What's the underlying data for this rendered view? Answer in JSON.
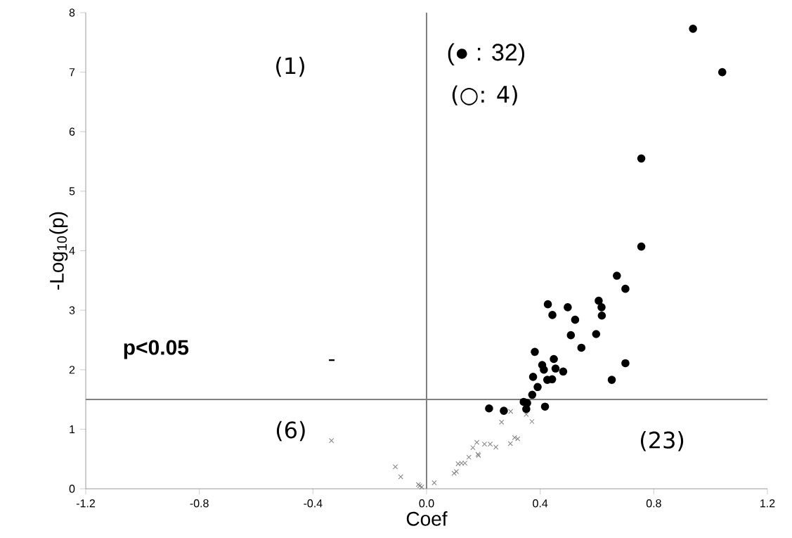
{
  "chart_data": {
    "type": "scatter",
    "xlabel": "Coef",
    "ylabel": "-Log$_{10}$(p)",
    "xlim": [
      -1.2,
      1.2
    ],
    "ylim": [
      0,
      8
    ],
    "xticks": [
      {
        "value": -1.2,
        "label": "-1.2"
      },
      {
        "value": -0.8,
        "label": "-0.8"
      },
      {
        "value": -0.4,
        "label": "-0.4"
      },
      {
        "value": 0,
        "label": "0.0"
      },
      {
        "value": 0.4,
        "label": "0.4"
      },
      {
        "value": 0.8,
        "label": "0.8"
      },
      {
        "value": 1.2,
        "label": "1.2"
      }
    ],
    "yticks": [
      0,
      1,
      2,
      3,
      4,
      5,
      6,
      7,
      8
    ],
    "grid": false,
    "series": [
      {
        "color": "#000000",
        "marker": "circle",
        "x": [
          0.427,
          0.497,
          0.443,
          0.606,
          0.616,
          0.617,
          0.523,
          0.508,
          0.597,
          0.545,
          0.381,
          0.448,
          0.407,
          0.413,
          0.454,
          0.481,
          0.375,
          0.425,
          0.442,
          0.391,
          0.372,
          0.354,
          0.417,
          0.652,
          0.67,
          0.7,
          0.7,
          0.938,
          1.041,
          0.756,
          0.756
        ],
        "values": [
          3.1,
          3.05,
          2.92,
          3.16,
          3.05,
          2.91,
          2.84,
          2.58,
          2.6,
          2.37,
          2.3,
          2.18,
          2.08,
          2.0,
          2.02,
          1.97,
          1.88,
          1.83,
          1.84,
          1.71,
          1.58,
          1.44,
          1.38,
          1.83,
          3.58,
          3.36,
          2.11,
          7.73,
          7.0,
          5.55,
          4.07
        ]
      },
      {
        "color": "#000000",
        "marker": "circle",
        "x": [
          0.22,
          0.272,
          0.342,
          0.351
        ],
        "values": [
          1.35,
          1.31,
          1.46,
          1.34
        ]
      },
      {
        "color": "#808080",
        "marker": "cross",
        "x": [
          0.296,
          0.264,
          0.351,
          0.371,
          -0.11,
          -0.091,
          -0.029,
          -0.017,
          -0.024,
          0.027,
          0.097,
          0.105,
          0.111,
          0.123,
          0.135,
          0.149,
          0.163,
          0.177,
          0.181,
          0.183,
          0.204,
          0.224,
          0.244,
          0.295,
          0.31,
          0.321,
          -0.335
        ],
        "values": [
          1.3,
          1.12,
          1.25,
          1.13,
          0.37,
          0.2,
          0.07,
          0.03,
          0.05,
          0.1,
          0.26,
          0.29,
          0.42,
          0.43,
          0.43,
          0.53,
          0.69,
          0.78,
          0.58,
          0.56,
          0.75,
          0.75,
          0.7,
          0.76,
          0.86,
          0.84,
          0.81
        ]
      }
    ],
    "ref_lines": [
      {
        "axis": "y",
        "value": 1.5,
        "color": "#808080"
      },
      {
        "axis": "x",
        "value": 0,
        "color": "#808080"
      }
    ],
    "annotations": [
      "(1)",
      "(● : 32)",
      "(○: 4)",
      "**p<0.05**",
      "-",
      "(6)",
      "(23)"
    ]
  }
}
